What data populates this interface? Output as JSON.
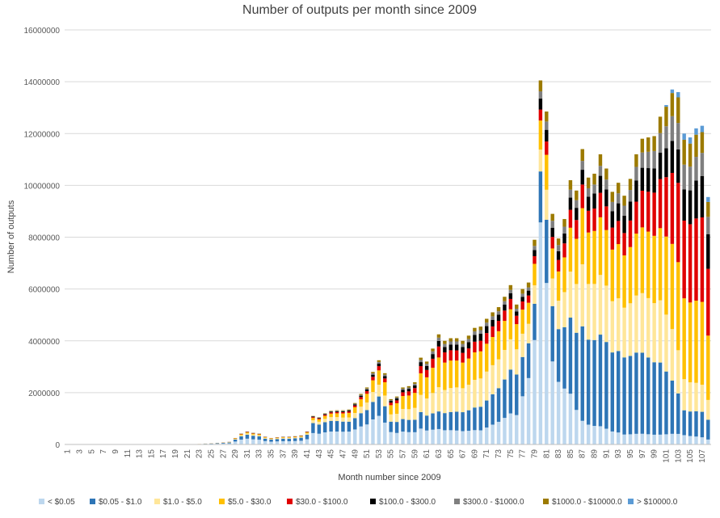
{
  "chart_data": {
    "type": "bar",
    "stacked": true,
    "title": "Number of outputs per month since 2009",
    "xlabel": "Month number since 2009",
    "ylabel": "Number of outputs",
    "ylim": [
      0,
      16000000
    ],
    "yticks": [
      0,
      2000000,
      4000000,
      6000000,
      8000000,
      10000000,
      12000000,
      14000000,
      16000000
    ],
    "ytick_labels": [
      "0",
      "2000000",
      "4000000",
      "6000000",
      "8000000",
      "10000000",
      "12000000",
      "14000000",
      "16000000"
    ],
    "x_first": 1,
    "x_last": 108,
    "xtick_labels": [
      "1",
      "3",
      "5",
      "7",
      "9",
      "11",
      "13",
      "15",
      "17",
      "19",
      "21",
      "23",
      "25",
      "27",
      "29",
      "31",
      "33",
      "35",
      "37",
      "39",
      "41",
      "43",
      "45",
      "47",
      "49",
      "51",
      "53",
      "55",
      "57",
      "59",
      "61",
      "63",
      "65",
      "67",
      "69",
      "71",
      "73",
      "75",
      "77",
      "79",
      "81",
      "83",
      "85",
      "87",
      "89",
      "91",
      "93",
      "95",
      "97",
      "99",
      "101",
      "103",
      "105",
      "107"
    ],
    "grid": true,
    "legend_position": "bottom",
    "series": [
      {
        "name": "< $0.05",
        "color": "#bdd7ee"
      },
      {
        "name": "$0.05 - $1.0",
        "color": "#2e75b6"
      },
      {
        "name": "$1.0 - $5.0",
        "color": "#ffe699"
      },
      {
        "name": "$5.0 - $30.0",
        "color": "#ffc000"
      },
      {
        "name": "$30.0 - $100.0",
        "color": "#e00000"
      },
      {
        "name": "$100.0 - $300.0",
        "color": "#000000"
      },
      {
        "name": "$300.0 - $1000.0",
        "color": "#7f7f7f"
      },
      {
        "name": "$1000.0 - $10000.0",
        "color": "#9c7a00"
      },
      {
        "name": "> $10000.0",
        "color": "#5b9bd5"
      }
    ],
    "totals_anchor_points": [
      [
        1,
        0
      ],
      [
        20,
        0
      ],
      [
        23,
        20000
      ],
      [
        26,
        60000
      ],
      [
        28,
        100000
      ],
      [
        29,
        250000
      ],
      [
        30,
        420000
      ],
      [
        31,
        500000
      ],
      [
        32,
        450000
      ],
      [
        33,
        420000
      ],
      [
        34,
        300000
      ],
      [
        35,
        250000
      ],
      [
        36,
        280000
      ],
      [
        37,
        300000
      ],
      [
        38,
        300000
      ],
      [
        39,
        320000
      ],
      [
        40,
        350000
      ],
      [
        41,
        500000
      ],
      [
        42,
        1100000
      ],
      [
        43,
        1050000
      ],
      [
        44,
        1200000
      ],
      [
        45,
        1300000
      ],
      [
        46,
        1320000
      ],
      [
        47,
        1320000
      ],
      [
        48,
        1350000
      ],
      [
        49,
        1600000
      ],
      [
        50,
        1950000
      ],
      [
        51,
        2200000
      ],
      [
        52,
        2800000
      ],
      [
        53,
        3250000
      ],
      [
        54,
        2750000
      ],
      [
        55,
        1750000
      ],
      [
        56,
        1850000
      ],
      [
        57,
        2200000
      ],
      [
        58,
        2250000
      ],
      [
        59,
        2400000
      ],
      [
        60,
        3350000
      ],
      [
        61,
        3200000
      ],
      [
        62,
        3700000
      ],
      [
        63,
        4250000
      ],
      [
        64,
        4000000
      ],
      [
        65,
        4100000
      ],
      [
        66,
        4100000
      ],
      [
        67,
        4000000
      ],
      [
        68,
        4200000
      ],
      [
        69,
        4500000
      ],
      [
        70,
        4550000
      ],
      [
        71,
        4850000
      ],
      [
        72,
        5100000
      ],
      [
        73,
        5300000
      ],
      [
        74,
        5700000
      ],
      [
        75,
        6150000
      ],
      [
        76,
        5400000
      ],
      [
        77,
        6000000
      ],
      [
        78,
        6250000
      ],
      [
        79,
        7900000
      ],
      [
        80,
        14050000
      ],
      [
        81,
        12850000
      ],
      [
        82,
        8900000
      ],
      [
        83,
        7950000
      ],
      [
        84,
        8700000
      ],
      [
        85,
        10200000
      ],
      [
        86,
        9800000
      ],
      [
        87,
        11400000
      ],
      [
        88,
        10300000
      ],
      [
        89,
        10450000
      ],
      [
        90,
        11200000
      ],
      [
        91,
        10650000
      ],
      [
        92,
        9750000
      ],
      [
        93,
        10100000
      ],
      [
        94,
        9600000
      ],
      [
        95,
        10250000
      ],
      [
        96,
        11200000
      ],
      [
        97,
        11800000
      ],
      [
        98,
        11850000
      ],
      [
        99,
        11900000
      ],
      [
        100,
        12650000
      ],
      [
        101,
        13100000
      ],
      [
        102,
        13700000
      ],
      [
        103,
        13600000
      ],
      [
        104,
        12000000
      ],
      [
        105,
        11850000
      ],
      [
        106,
        12200000
      ],
      [
        107,
        12300000
      ],
      [
        108,
        9550000
      ]
    ],
    "category_shares_anchor_points": [
      [
        1,
        [
          0.55,
          0.35,
          0.05,
          0.03,
          0.01,
          0.005,
          0.003,
          0.002,
          0.0
        ]
      ],
      [
        30,
        [
          0.45,
          0.3,
          0.1,
          0.08,
          0.03,
          0.02,
          0.01,
          0.01,
          0.0
        ]
      ],
      [
        42,
        [
          0.4,
          0.35,
          0.1,
          0.08,
          0.03,
          0.02,
          0.01,
          0.01,
          0.0
        ]
      ],
      [
        53,
        [
          0.34,
          0.23,
          0.14,
          0.17,
          0.05,
          0.03,
          0.02,
          0.02,
          0.0
        ]
      ],
      [
        56,
        [
          0.24,
          0.23,
          0.17,
          0.22,
          0.06,
          0.04,
          0.02,
          0.02,
          0.0
        ]
      ],
      [
        63,
        [
          0.14,
          0.16,
          0.22,
          0.27,
          0.1,
          0.05,
          0.03,
          0.03,
          0.0
        ]
      ],
      [
        70,
        [
          0.12,
          0.2,
          0.24,
          0.23,
          0.09,
          0.06,
          0.03,
          0.03,
          0.0
        ]
      ],
      [
        76,
        [
          0.21,
          0.29,
          0.18,
          0.18,
          0.06,
          0.03,
          0.02,
          0.03,
          0.0
        ]
      ],
      [
        80,
        [
          0.61,
          0.14,
          0.06,
          0.08,
          0.03,
          0.03,
          0.02,
          0.03,
          0.0
        ]
      ],
      [
        82,
        [
          0.36,
          0.24,
          0.12,
          0.13,
          0.05,
          0.04,
          0.03,
          0.03,
          0.0
        ]
      ],
      [
        87,
        [
          0.08,
          0.32,
          0.21,
          0.19,
          0.08,
          0.05,
          0.03,
          0.04,
          0.0
        ]
      ],
      [
        94,
        [
          0.04,
          0.31,
          0.2,
          0.21,
          0.09,
          0.07,
          0.04,
          0.04,
          0.0
        ]
      ],
      [
        100,
        [
          0.03,
          0.22,
          0.19,
          0.22,
          0.15,
          0.08,
          0.06,
          0.05,
          0.0
        ]
      ],
      [
        104,
        [
          0.03,
          0.08,
          0.1,
          0.26,
          0.25,
          0.1,
          0.08,
          0.08,
          0.02
        ]
      ],
      [
        108,
        [
          0.02,
          0.08,
          0.08,
          0.26,
          0.27,
          0.14,
          0.07,
          0.06,
          0.02
        ]
      ]
    ]
  }
}
